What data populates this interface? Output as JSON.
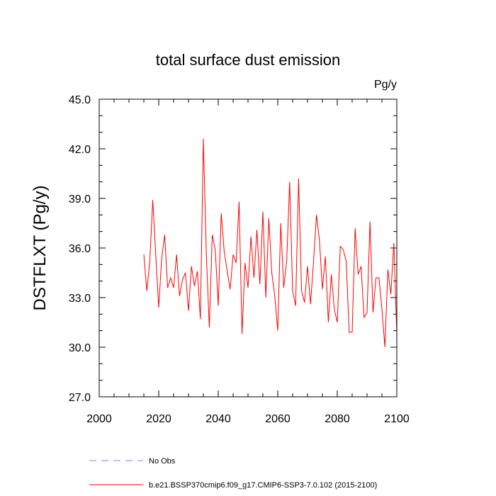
{
  "chart_data": {
    "type": "line",
    "title": "total surface dust emission",
    "units": "Pg/y",
    "xlabel": "",
    "ylabel": "DSTFLXT  (Pg/y)",
    "xlim": [
      2000,
      2100
    ],
    "ylim": [
      27.0,
      45.0
    ],
    "x_ticks": [
      2000,
      2020,
      2040,
      2060,
      2080,
      2100
    ],
    "x_tick_labels": [
      "2000",
      "2020",
      "2040",
      "2060",
      "2080",
      "2100"
    ],
    "y_ticks": [
      27.0,
      30.0,
      33.0,
      36.0,
      39.0,
      42.0,
      45.0
    ],
    "y_tick_labels": [
      "27.0",
      "30.0",
      "33.0",
      "36.0",
      "39.0",
      "42.0",
      "45.0"
    ],
    "grid": false,
    "series": [
      {
        "name": "b.e21.BSSP370cmip6.f09_g17.CMIP6-SSP3-7.0.102 (2015-2100)",
        "color": "#ff0000",
        "style": "solid",
        "x": [
          2015,
          2016,
          2017,
          2018,
          2019,
          2020,
          2021,
          2022,
          2023,
          2024,
          2025,
          2026,
          2027,
          2028,
          2029,
          2030,
          2031,
          2032,
          2033,
          2034,
          2035,
          2036,
          2037,
          2038,
          2039,
          2040,
          2041,
          2042,
          2043,
          2044,
          2045,
          2046,
          2047,
          2048,
          2049,
          2050,
          2051,
          2052,
          2053,
          2054,
          2055,
          2056,
          2057,
          2058,
          2059,
          2060,
          2061,
          2062,
          2063,
          2064,
          2065,
          2066,
          2067,
          2068,
          2069,
          2070,
          2071,
          2072,
          2073,
          2074,
          2075,
          2076,
          2077,
          2078,
          2079,
          2080,
          2081,
          2082,
          2083,
          2084,
          2085,
          2086,
          2087,
          2088,
          2089,
          2090,
          2091,
          2092,
          2093,
          2094,
          2095,
          2096,
          2097,
          2098,
          2099,
          2100
        ],
        "values": [
          35.6,
          33.4,
          35.2,
          38.9,
          35.6,
          32.4,
          35.4,
          36.8,
          33.6,
          34.2,
          33.6,
          35.6,
          33.1,
          34.1,
          34.5,
          32.2,
          34.9,
          33.7,
          34.6,
          31.7,
          42.6,
          35.6,
          31.2,
          36.8,
          35.9,
          32.5,
          38.1,
          35.8,
          34.6,
          33.5,
          35.6,
          35.1,
          38.8,
          30.8,
          35.1,
          33.6,
          36.7,
          34.2,
          37.1,
          33.8,
          38.2,
          33.0,
          37.8,
          34.5,
          33.1,
          31.0,
          37.5,
          33.6,
          35.2,
          40.0,
          33.4,
          32.5,
          40.2,
          33.4,
          32.7,
          34.9,
          32.6,
          35.1,
          38.0,
          36.5,
          33.5,
          35.5,
          31.5,
          34.4,
          32.3,
          31.5,
          36.1,
          35.9,
          35.2,
          30.9,
          30.9,
          37.2,
          34.4,
          34.9,
          31.8,
          32.1,
          37.6,
          32.1,
          34.2,
          34.2,
          32.3,
          30.0,
          34.7,
          33.2,
          36.3,
          30.8
        ]
      }
    ],
    "legend": {
      "position": "bottom",
      "entries": [
        {
          "label": "No Obs",
          "color": "#8080ff",
          "style": "dashed"
        },
        {
          "label": "b.e21.BSSP370cmip6.f09_g17.CMIP6-SSP3-7.0.102 (2015-2100)",
          "color": "#ff0000",
          "style": "solid"
        }
      ]
    }
  }
}
